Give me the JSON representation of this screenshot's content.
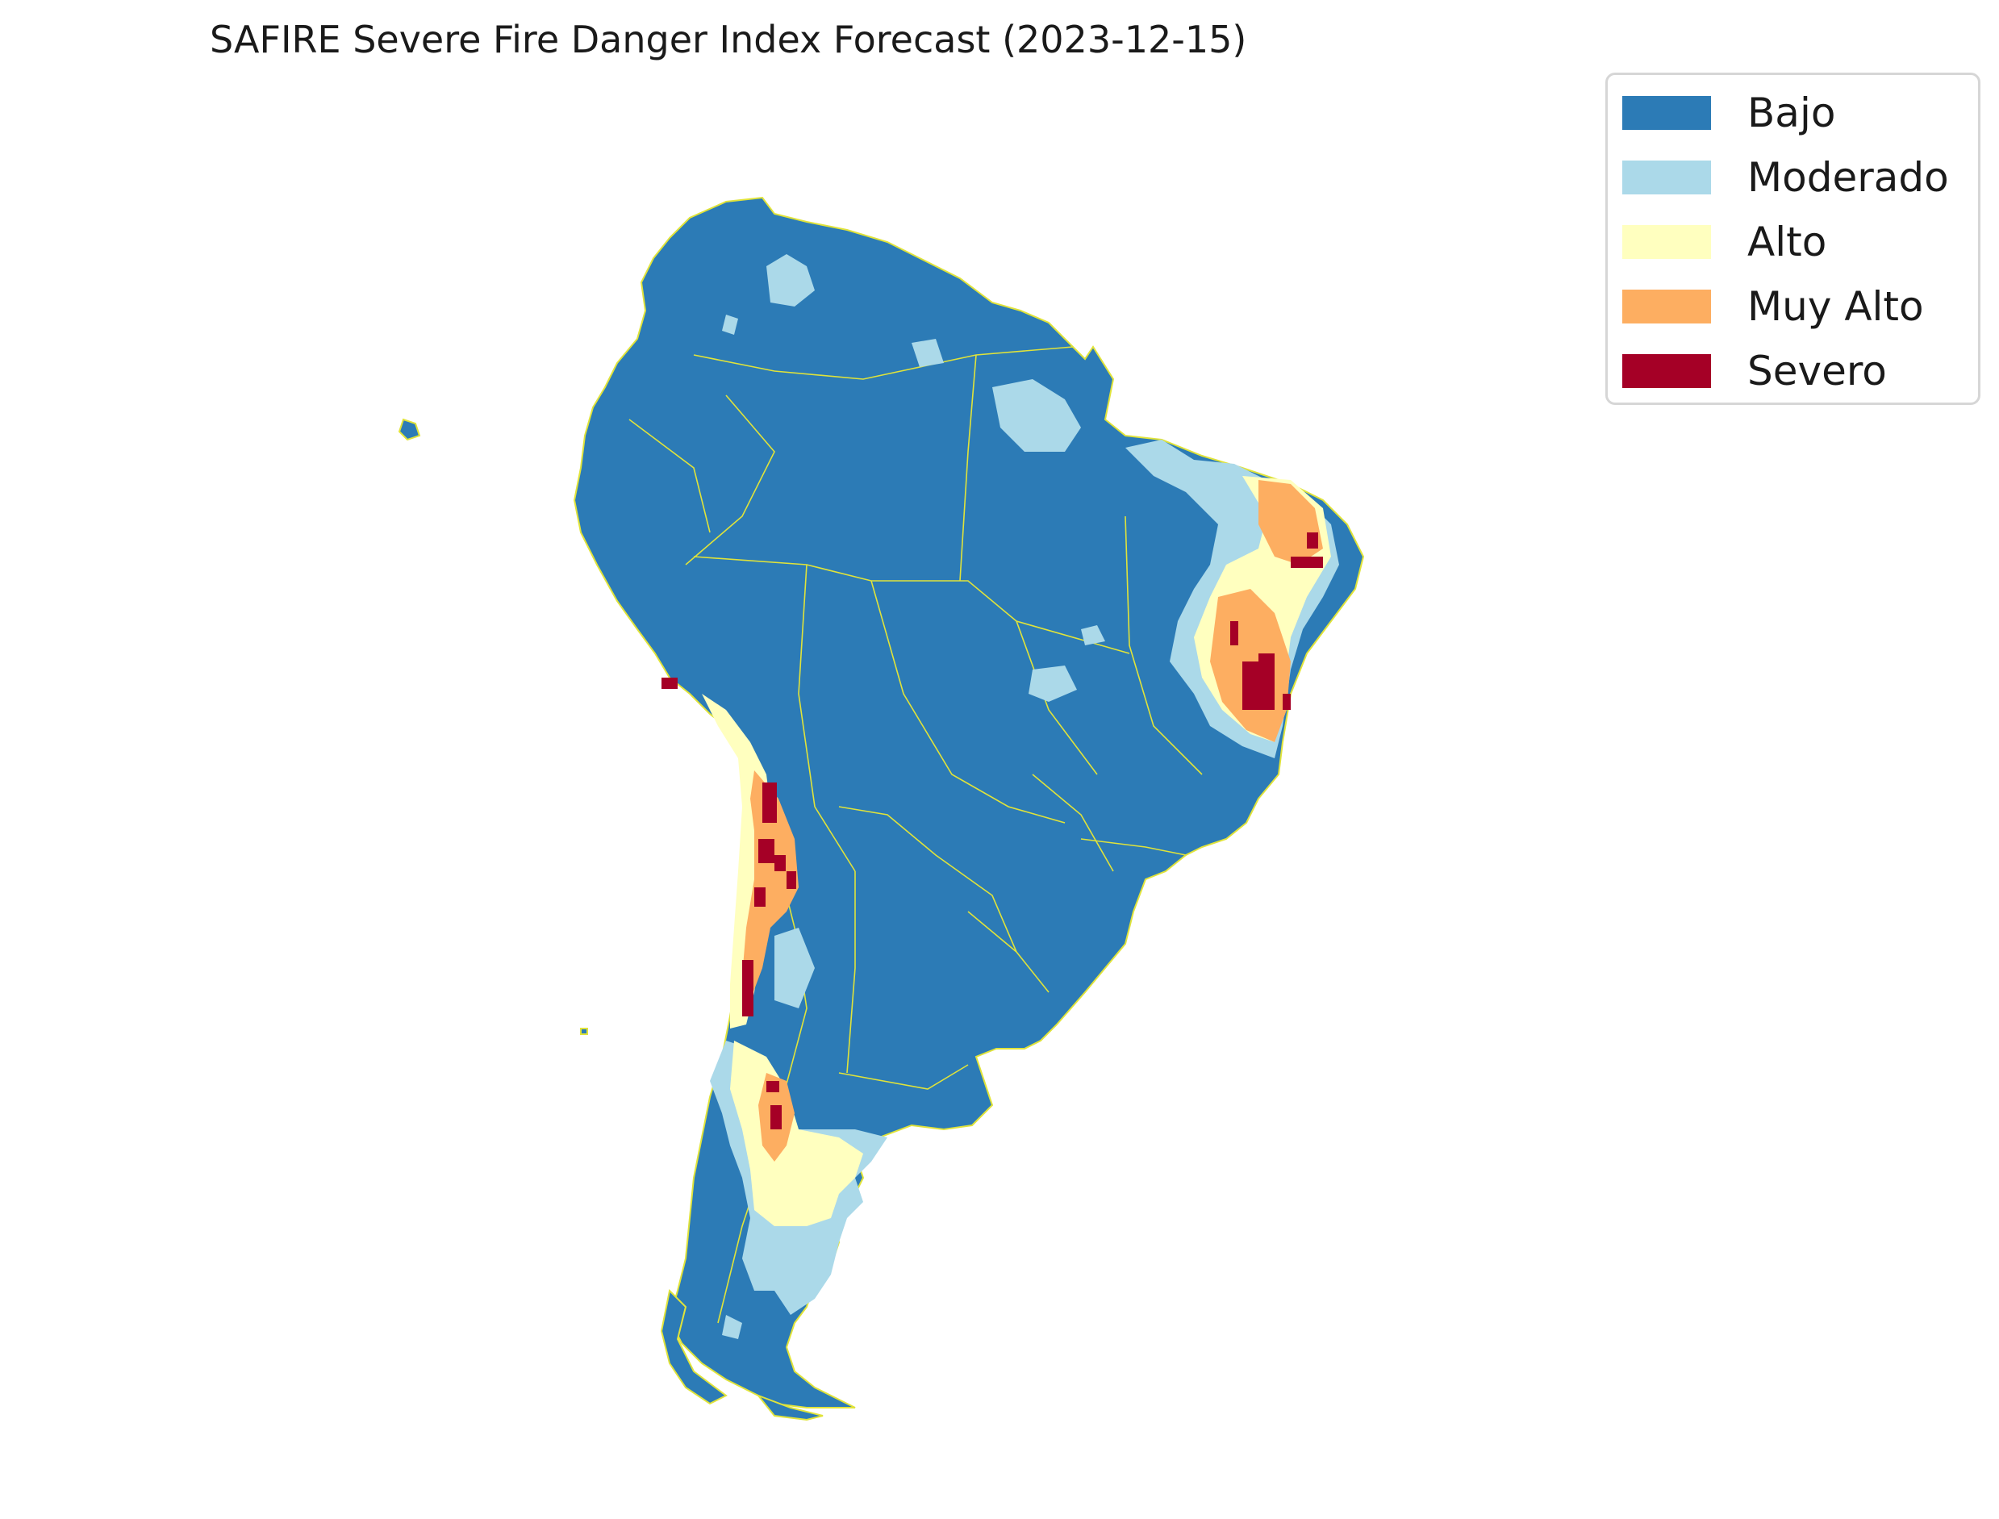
{
  "title": "SAFIRE Severe Fire Danger Index Forecast (2023-12-15)",
  "legend": {
    "items": [
      {
        "label": "Bajo",
        "color": "#2c7bb6"
      },
      {
        "label": "Moderado",
        "color": "#abd9e9"
      },
      {
        "label": "Alto",
        "color": "#ffffbf"
      },
      {
        "label": "Muy Alto",
        "color": "#fdae61"
      },
      {
        "label": "Severo",
        "color": "#a50026"
      }
    ]
  },
  "border_color": "#e0e33a"
}
